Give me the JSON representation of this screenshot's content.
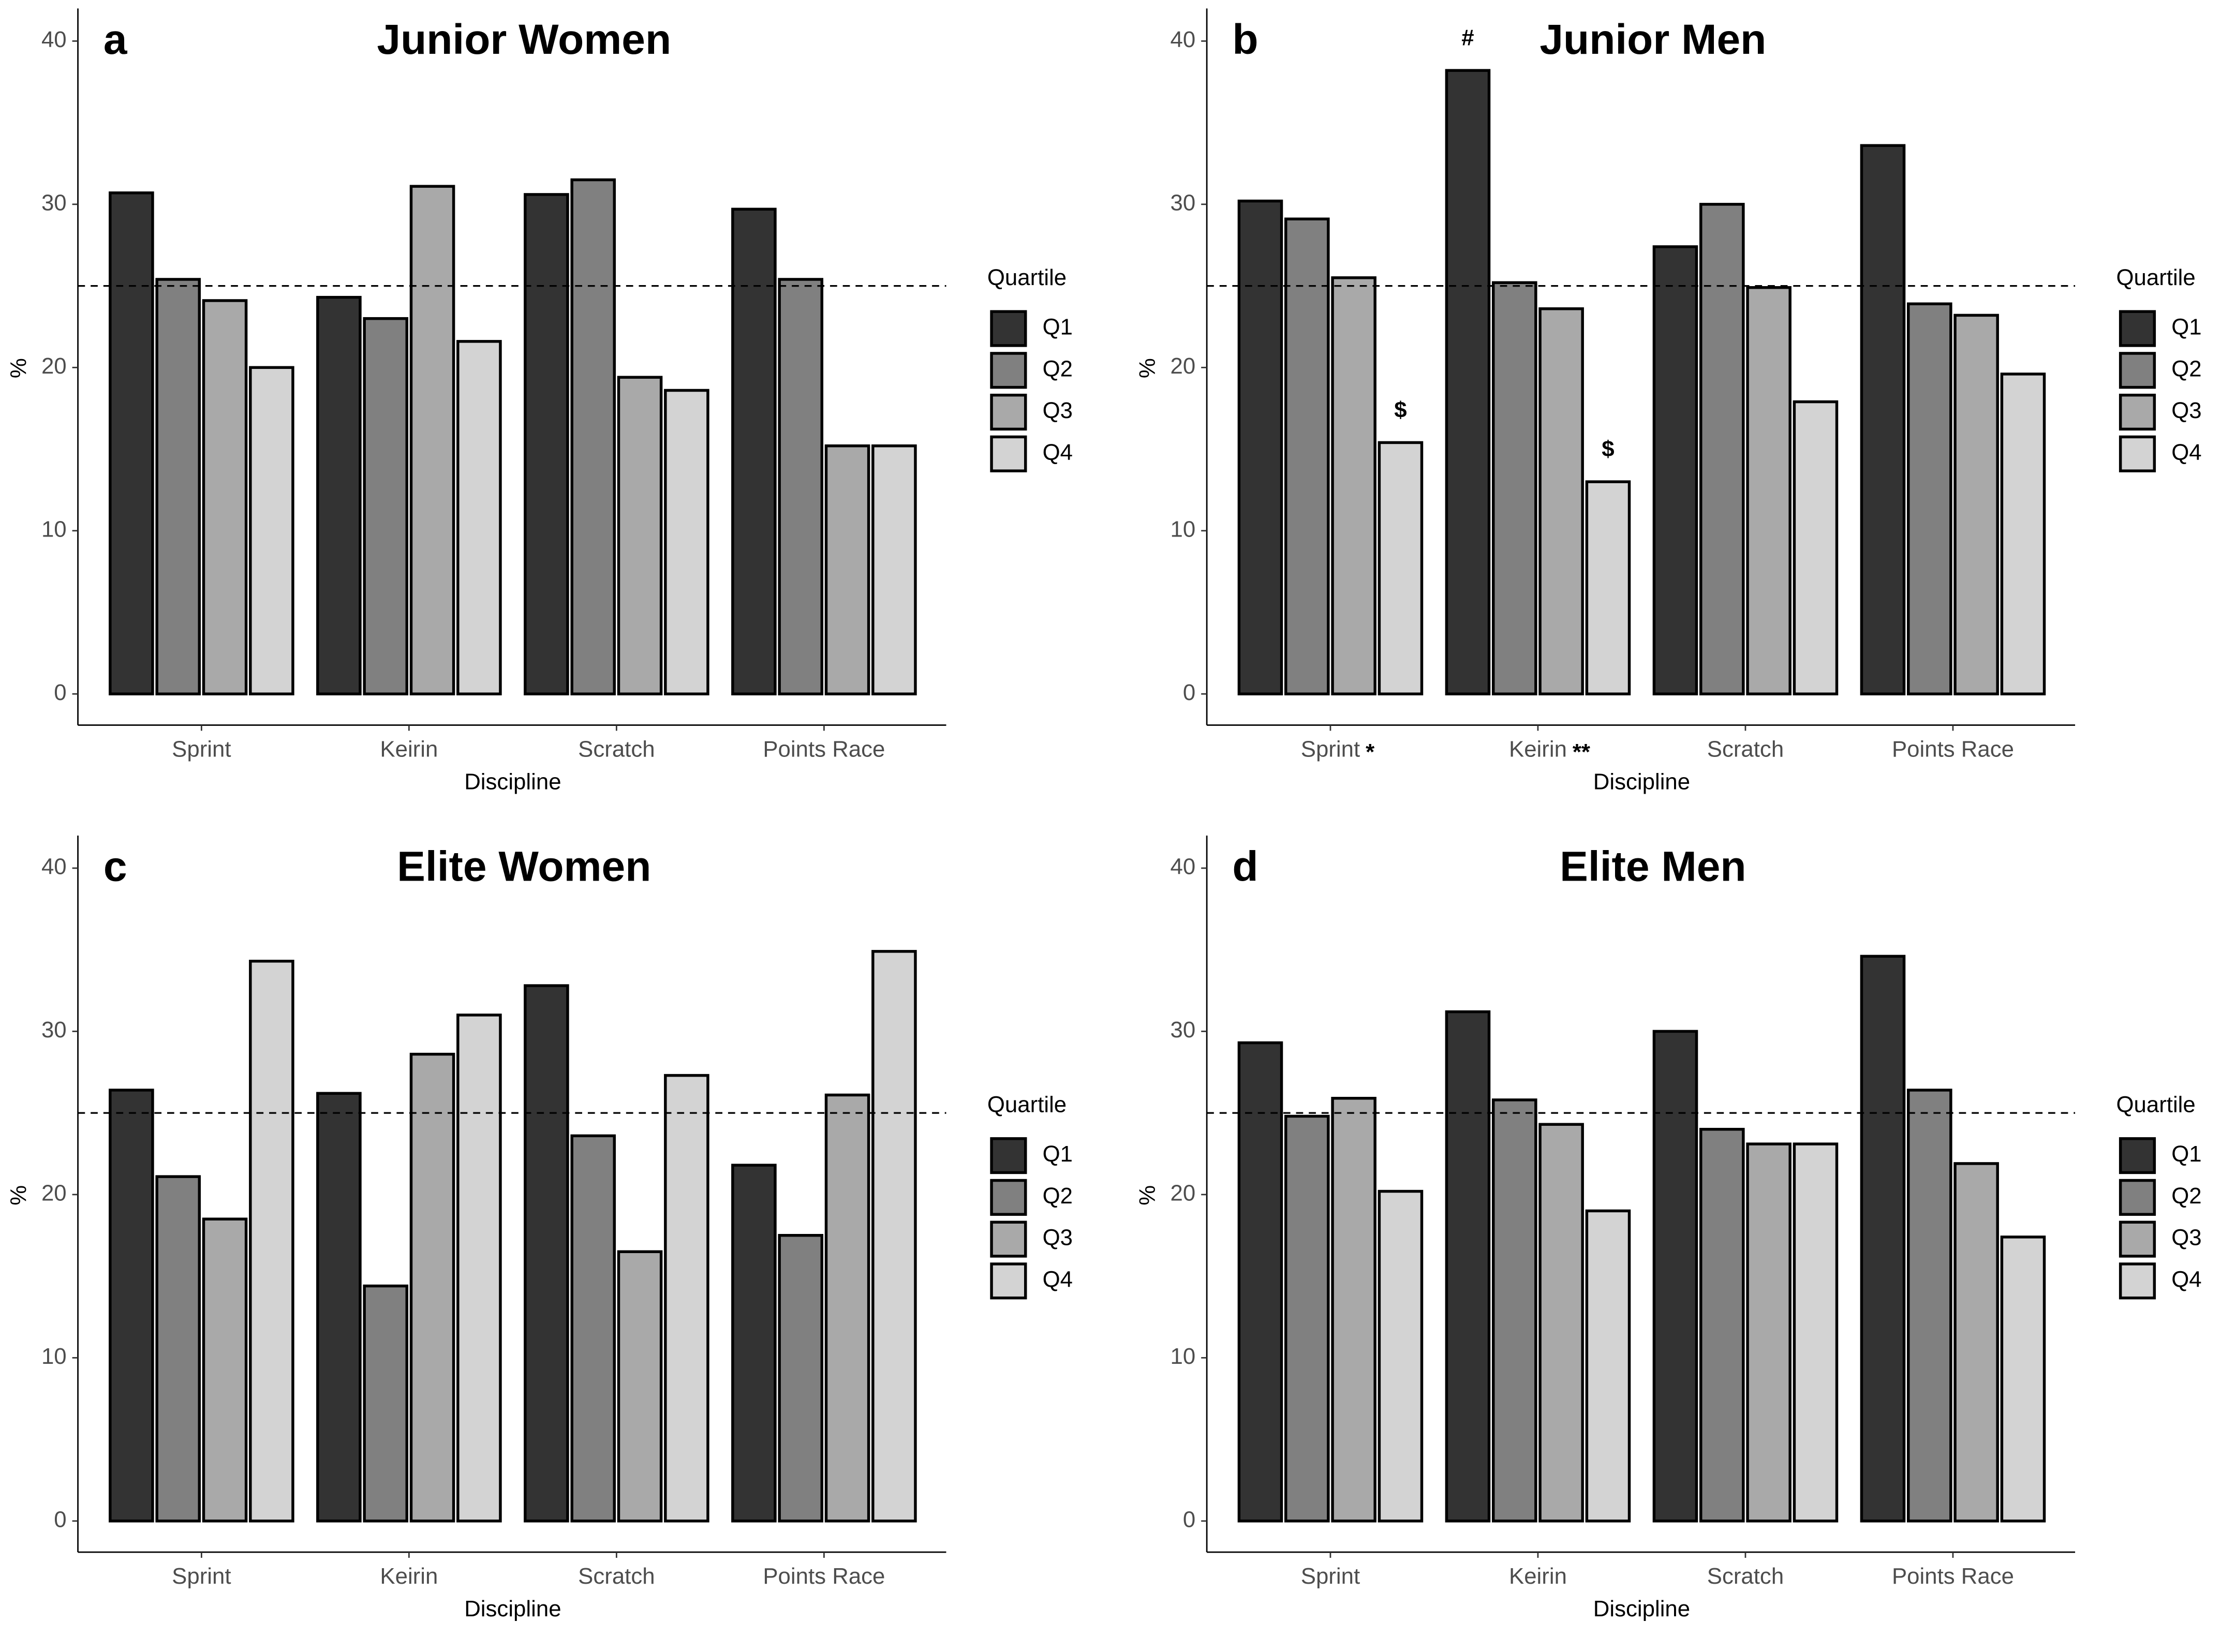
{
  "chart_data": [
    {
      "type": "bar",
      "panel": "a",
      "title": "Junior Women",
      "xlabel": "Discipline",
      "ylabel": "%",
      "legend_title": "Quartile",
      "categories": [
        "Sprint",
        "Keirin",
        "Scratch",
        "Points Race"
      ],
      "series": [
        {
          "name": "Q1",
          "color": "#333333",
          "values": [
            30.7,
            24.3,
            30.6,
            29.7
          ]
        },
        {
          "name": "Q2",
          "color": "#808080",
          "values": [
            25.4,
            23.0,
            31.5,
            25.4
          ]
        },
        {
          "name": "Q3",
          "color": "#a9a9a9",
          "values": [
            24.1,
            31.1,
            19.4,
            15.2
          ]
        },
        {
          "name": "Q4",
          "color": "#d3d3d3",
          "values": [
            20.0,
            21.6,
            18.6,
            15.2
          ]
        }
      ],
      "ylim": [
        0,
        40
      ],
      "yticks": [
        0,
        10,
        20,
        30,
        40
      ],
      "reference_line": 25
    },
    {
      "type": "bar",
      "panel": "b",
      "title": "Junior Men",
      "xlabel": "Discipline",
      "ylabel": "%",
      "legend_title": "Quartile",
      "categories": [
        "Sprint",
        "Keirin",
        "Scratch",
        "Points Race"
      ],
      "category_annotations": [
        "*",
        "**",
        null,
        null
      ],
      "series": [
        {
          "name": "Q1",
          "color": "#333333",
          "values": [
            30.2,
            38.2,
            27.4,
            33.6
          ],
          "annotations": [
            null,
            "#",
            null,
            null
          ]
        },
        {
          "name": "Q2",
          "color": "#808080",
          "values": [
            29.1,
            25.2,
            30.0,
            23.9
          ]
        },
        {
          "name": "Q3",
          "color": "#a9a9a9",
          "values": [
            25.5,
            23.6,
            24.9,
            23.2
          ]
        },
        {
          "name": "Q4",
          "color": "#d3d3d3",
          "values": [
            15.4,
            13.0,
            17.9,
            19.6
          ],
          "annotations": [
            "$",
            "$",
            null,
            null
          ]
        }
      ],
      "ylim": [
        0,
        40
      ],
      "yticks": [
        0,
        10,
        20,
        30,
        40
      ],
      "reference_line": 25
    },
    {
      "type": "bar",
      "panel": "c",
      "title": "Elite Women",
      "xlabel": "Discipline",
      "ylabel": "%",
      "legend_title": "Quartile",
      "categories": [
        "Sprint",
        "Keirin",
        "Scratch",
        "Points Race"
      ],
      "series": [
        {
          "name": "Q1",
          "color": "#333333",
          "values": [
            26.4,
            26.2,
            32.8,
            21.8
          ]
        },
        {
          "name": "Q2",
          "color": "#808080",
          "values": [
            21.1,
            14.4,
            23.6,
            17.5
          ]
        },
        {
          "name": "Q3",
          "color": "#a9a9a9",
          "values": [
            18.5,
            28.6,
            16.5,
            26.1
          ]
        },
        {
          "name": "Q4",
          "color": "#d3d3d3",
          "values": [
            34.3,
            31.0,
            27.3,
            34.9
          ]
        }
      ],
      "ylim": [
        0,
        40
      ],
      "yticks": [
        0,
        10,
        20,
        30,
        40
      ],
      "reference_line": 25
    },
    {
      "type": "bar",
      "panel": "d",
      "title": "Elite Men",
      "xlabel": "Discipline",
      "ylabel": "%",
      "legend_title": "Quartile",
      "categories": [
        "Sprint",
        "Keirin",
        "Scratch",
        "Points Race"
      ],
      "series": [
        {
          "name": "Q1",
          "color": "#333333",
          "values": [
            29.3,
            31.2,
            30.0,
            34.6
          ]
        },
        {
          "name": "Q2",
          "color": "#808080",
          "values": [
            24.8,
            25.8,
            24.0,
            26.4
          ]
        },
        {
          "name": "Q3",
          "color": "#a9a9a9",
          "values": [
            25.9,
            24.3,
            23.1,
            21.9
          ]
        },
        {
          "name": "Q4",
          "color": "#d3d3d3",
          "values": [
            20.2,
            19.0,
            23.1,
            17.4
          ]
        }
      ],
      "ylim": [
        0,
        40
      ],
      "yticks": [
        0,
        10,
        20,
        30,
        40
      ],
      "reference_line": 25
    }
  ]
}
